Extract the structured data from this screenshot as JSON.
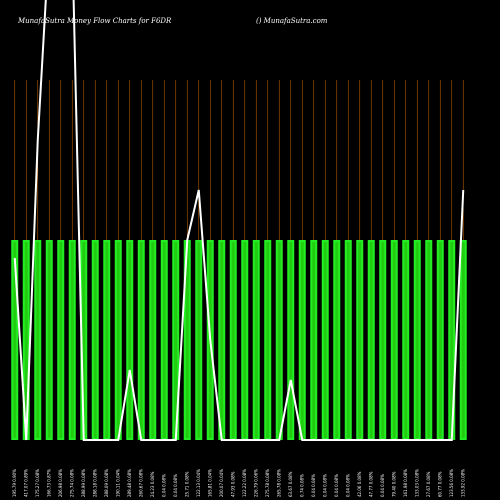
{
  "chart_data": {
    "type": "bar",
    "title": "MunafaSutra  Money Flow  Charts for F6DR",
    "watermark": "() MunafaSutra.com",
    "grid": true,
    "ylim": [
      0,
      100
    ],
    "colors": {
      "background": "#000000",
      "bar": "#22ee22",
      "bar_inner": "#22cc11",
      "grid": "#b35a00",
      "line": "#ffffff"
    },
    "categories": [
      "195.79 0.90%",
      "417.07 0.89%",
      "175.27 0.08%",
      "166.73 0.87%",
      "206.98 0.08%",
      "275.74 0.08%",
      "288.99 0.08%",
      "288.18 0.08%",
      "288.09 0.08%",
      "190.11 0.04%",
      "289.48 0.08%",
      "260.67 0.08%",
      "24.23 0.08%",
      "0.04 0.08%",
      "0.04 0.08%",
      "25.71 0.08%",
      "122.13 0.04%",
      "165.81 0.04%",
      "200.07 0.04%",
      "47.93 0.08%",
      "122.22 0.08%",
      "226.79 0.06%",
      "275.78 0.08%",
      "265.78 0.08%",
      "63.67 0.08%",
      "0.74 0.08%",
      "0.04 0.08%",
      "0.04 0.08%",
      "0.04 0.08%",
      "0.04 0.08%",
      "42.06 0.08%",
      "47.77 0.08%",
      "0.04 0.08%",
      "79.40 0.08%",
      "161.98 0.08%",
      "133.03 0.08%",
      "27.67 0.08%",
      "60.77 0.08%",
      "123.56 0.08%",
      "133.92 0.08%"
    ],
    "values": [
      100,
      100,
      100,
      100,
      100,
      100,
      100,
      100,
      100,
      100,
      100,
      100,
      100,
      100,
      100,
      100,
      100,
      100,
      100,
      100,
      100,
      100,
      100,
      100,
      100,
      100,
      100,
      100,
      100,
      100,
      100,
      100,
      100,
      100,
      100,
      100,
      100,
      100,
      100,
      100
    ],
    "line_values": [
      91,
      0,
      150,
      250,
      250,
      250,
      0,
      0,
      0,
      0,
      35,
      0,
      0,
      0,
      0,
      100,
      125,
      50,
      0,
      0,
      0,
      0,
      0,
      0,
      30,
      0,
      0,
      0,
      0,
      0,
      0,
      0,
      0,
      0,
      0,
      0,
      0,
      0,
      0,
      125
    ]
  }
}
